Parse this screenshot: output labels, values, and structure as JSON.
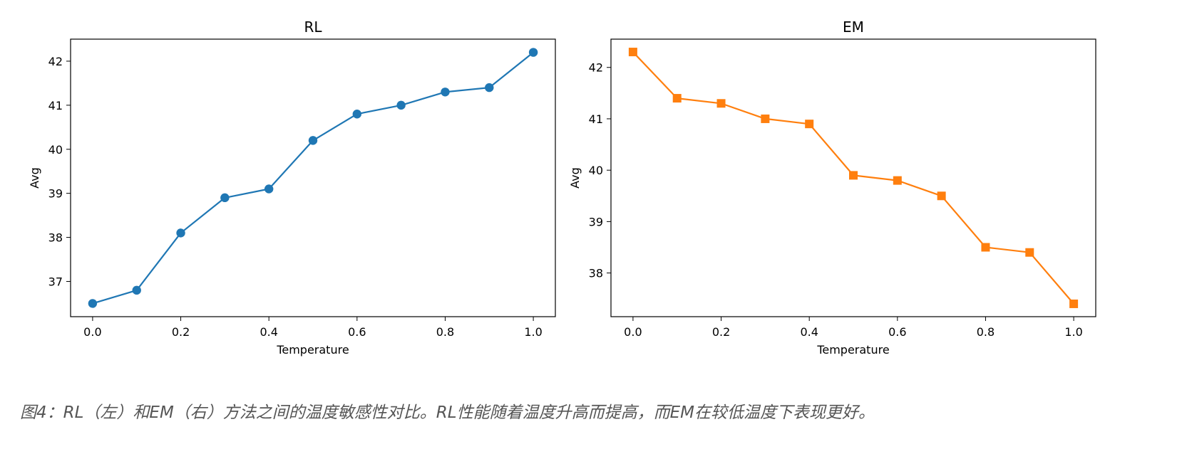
{
  "chart_data": [
    {
      "type": "line",
      "title": "RL",
      "xlabel": "Temperature",
      "ylabel": "Avg",
      "x": [
        0.0,
        0.1,
        0.2,
        0.3,
        0.4,
        0.5,
        0.6,
        0.7,
        0.8,
        0.9,
        1.0
      ],
      "series": [
        {
          "values": [
            36.5,
            36.8,
            38.1,
            38.9,
            39.1,
            40.2,
            40.8,
            41.0,
            41.3,
            41.4,
            42.2
          ],
          "color": "#1f77b4",
          "marker": "circle"
        }
      ],
      "xlim": [
        -0.05,
        1.05
      ],
      "ylim": [
        36.2,
        42.5
      ],
      "xticks": [
        "0.0",
        "0.2",
        "0.4",
        "0.6",
        "0.8",
        "1.0"
      ],
      "yticks": [
        "37",
        "38",
        "39",
        "40",
        "41",
        "42"
      ],
      "grid": false
    },
    {
      "type": "line",
      "title": "EM",
      "xlabel": "Temperature",
      "ylabel": "Avg",
      "x": [
        0.0,
        0.1,
        0.2,
        0.3,
        0.4,
        0.5,
        0.6,
        0.7,
        0.8,
        0.9,
        1.0
      ],
      "series": [
        {
          "values": [
            42.3,
            41.4,
            41.3,
            41.0,
            40.9,
            39.9,
            39.8,
            39.5,
            38.5,
            38.4,
            37.4
          ],
          "color": "#ff7f0e",
          "marker": "square"
        }
      ],
      "xlim": [
        -0.05,
        1.05
      ],
      "ylim": [
        37.15,
        42.55
      ],
      "xticks": [
        "0.0",
        "0.2",
        "0.4",
        "0.6",
        "0.8",
        "1.0"
      ],
      "yticks": [
        "38",
        "39",
        "40",
        "41",
        "42"
      ],
      "grid": false
    }
  ],
  "caption": "图4：RL（左）和EM（右）方法之间的温度敏感性对比。RL性能随着温度升高而提高，而EM在较低温度下表现更好。"
}
